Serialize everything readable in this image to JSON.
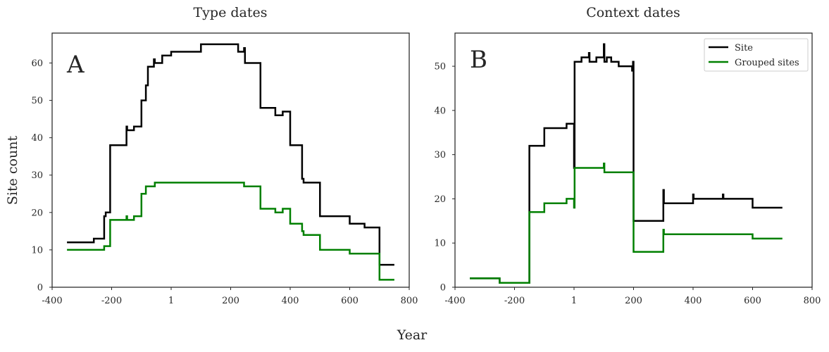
{
  "figure": {
    "xlabel": "Year",
    "ylabel": "Site count"
  },
  "colors": {
    "site": "#000000",
    "grouped": "#008000"
  },
  "chart_data": [
    {
      "type": "line",
      "title": "Type dates",
      "panel_label": "A",
      "xlim": [
        -400,
        800
      ],
      "ylim": [
        0,
        68
      ],
      "xticks": [
        -400,
        -200,
        0,
        200,
        400,
        600,
        800
      ],
      "xtick_labels": [
        "-400",
        "-200",
        "1",
        "200",
        "400",
        "600",
        "800"
      ],
      "yticks": [
        0,
        10,
        20,
        30,
        40,
        50,
        60
      ],
      "grid": false,
      "legend": false,
      "series": [
        {
          "name": "Site",
          "color": "#000000",
          "points": [
            [
              -350,
              12
            ],
            [
              -260,
              12
            ],
            [
              -260,
              13
            ],
            [
              -225,
              13
            ],
            [
              -225,
              19
            ],
            [
              -220,
              19
            ],
            [
              -220,
              20
            ],
            [
              -205,
              20
            ],
            [
              -205,
              38
            ],
            [
              -150,
              38
            ],
            [
              -150,
              43
            ],
            [
              -148,
              43
            ],
            [
              -148,
              42
            ],
            [
              -125,
              42
            ],
            [
              -125,
              43
            ],
            [
              -100,
              43
            ],
            [
              -100,
              50
            ],
            [
              -85,
              50
            ],
            [
              -85,
              54
            ],
            [
              -78,
              54
            ],
            [
              -78,
              59
            ],
            [
              -58,
              59
            ],
            [
              -58,
              61
            ],
            [
              -55,
              61
            ],
            [
              -55,
              60
            ],
            [
              -30,
              60
            ],
            [
              -30,
              62
            ],
            [
              0,
              62
            ],
            [
              0,
              63
            ],
            [
              100,
              63
            ],
            [
              100,
              65
            ],
            [
              225,
              65
            ],
            [
              225,
              63
            ],
            [
              245,
              63
            ],
            [
              245,
              64
            ],
            [
              248,
              64
            ],
            [
              248,
              60
            ],
            [
              300,
              60
            ],
            [
              300,
              48
            ],
            [
              350,
              48
            ],
            [
              350,
              46
            ],
            [
              375,
              46
            ],
            [
              375,
              47
            ],
            [
              400,
              47
            ],
            [
              400,
              38
            ],
            [
              440,
              38
            ],
            [
              440,
              29
            ],
            [
              445,
              29
            ],
            [
              445,
              28
            ],
            [
              500,
              28
            ],
            [
              500,
              19
            ],
            [
              600,
              19
            ],
            [
              600,
              17
            ],
            [
              650,
              17
            ],
            [
              650,
              16
            ],
            [
              700,
              16
            ],
            [
              700,
              6
            ],
            [
              750,
              6
            ]
          ]
        },
        {
          "name": "Grouped sites",
          "color": "#008000",
          "points": [
            [
              -350,
              10
            ],
            [
              -225,
              10
            ],
            [
              -225,
              11
            ],
            [
              -205,
              11
            ],
            [
              -205,
              18
            ],
            [
              -150,
              18
            ],
            [
              -150,
              19
            ],
            [
              -148,
              19
            ],
            [
              -148,
              18
            ],
            [
              -125,
              18
            ],
            [
              -125,
              19
            ],
            [
              -100,
              19
            ],
            [
              -100,
              25
            ],
            [
              -85,
              25
            ],
            [
              -85,
              27
            ],
            [
              -55,
              27
            ],
            [
              -55,
              28
            ],
            [
              245,
              28
            ],
            [
              245,
              27
            ],
            [
              300,
              27
            ],
            [
              300,
              21
            ],
            [
              350,
              21
            ],
            [
              350,
              20
            ],
            [
              375,
              20
            ],
            [
              375,
              21
            ],
            [
              400,
              21
            ],
            [
              400,
              17
            ],
            [
              440,
              17
            ],
            [
              440,
              15
            ],
            [
              445,
              15
            ],
            [
              445,
              14
            ],
            [
              500,
              14
            ],
            [
              500,
              10
            ],
            [
              600,
              10
            ],
            [
              600,
              9
            ],
            [
              700,
              9
            ],
            [
              700,
              2
            ],
            [
              750,
              2
            ]
          ]
        }
      ]
    },
    {
      "type": "line",
      "title": "Context dates",
      "panel_label": "B",
      "xlim": [
        -400,
        800
      ],
      "ylim": [
        0,
        57.5
      ],
      "xticks": [
        -400,
        -200,
        0,
        200,
        400,
        600,
        800
      ],
      "xtick_labels": [
        "-400",
        "-200",
        "1",
        "200",
        "400",
        "600",
        "800"
      ],
      "yticks": [
        0,
        10,
        20,
        30,
        40,
        50
      ],
      "grid": false,
      "legend": true,
      "legend_position": "upper right",
      "series": [
        {
          "name": "Site",
          "color": "#000000",
          "points": [
            [
              -350,
              2
            ],
            [
              -250,
              2
            ],
            [
              -250,
              1
            ],
            [
              -150,
              1
            ],
            [
              -150,
              32
            ],
            [
              -100,
              32
            ],
            [
              -100,
              36
            ],
            [
              -25,
              36
            ],
            [
              -25,
              37
            ],
            [
              0,
              37
            ],
            [
              0,
              27
            ],
            [
              2,
              27
            ],
            [
              2,
              51
            ],
            [
              25,
              51
            ],
            [
              25,
              52
            ],
            [
              50,
              52
            ],
            [
              50,
              53
            ],
            [
              52,
              53
            ],
            [
              52,
              51
            ],
            [
              75,
              51
            ],
            [
              75,
              52
            ],
            [
              100,
              52
            ],
            [
              100,
              55
            ],
            [
              102,
              55
            ],
            [
              102,
              51
            ],
            [
              110,
              51
            ],
            [
              110,
              52
            ],
            [
              125,
              52
            ],
            [
              125,
              51
            ],
            [
              150,
              51
            ],
            [
              150,
              50
            ],
            [
              195,
              50
            ],
            [
              195,
              49
            ],
            [
              198,
              49
            ],
            [
              198,
              51
            ],
            [
              200,
              51
            ],
            [
              200,
              15
            ],
            [
              300,
              15
            ],
            [
              300,
              22
            ],
            [
              302,
              22
            ],
            [
              302,
              19
            ],
            [
              400,
              19
            ],
            [
              400,
              21
            ],
            [
              402,
              21
            ],
            [
              402,
              20
            ],
            [
              500,
              20
            ],
            [
              500,
              21
            ],
            [
              502,
              21
            ],
            [
              502,
              20
            ],
            [
              600,
              20
            ],
            [
              600,
              18
            ],
            [
              700,
              18
            ]
          ]
        },
        {
          "name": "Grouped sites",
          "color": "#008000",
          "points": [
            [
              -350,
              2
            ],
            [
              -250,
              2
            ],
            [
              -250,
              1
            ],
            [
              -150,
              1
            ],
            [
              -150,
              17
            ],
            [
              -100,
              17
            ],
            [
              -100,
              19
            ],
            [
              -25,
              19
            ],
            [
              -25,
              20
            ],
            [
              0,
              20
            ],
            [
              0,
              18
            ],
            [
              2,
              18
            ],
            [
              2,
              27
            ],
            [
              100,
              27
            ],
            [
              100,
              28
            ],
            [
              102,
              28
            ],
            [
              102,
              26
            ],
            [
              200,
              26
            ],
            [
              200,
              8
            ],
            [
              300,
              8
            ],
            [
              300,
              13
            ],
            [
              302,
              13
            ],
            [
              302,
              12
            ],
            [
              600,
              12
            ],
            [
              600,
              11
            ],
            [
              700,
              11
            ]
          ]
        }
      ]
    }
  ]
}
